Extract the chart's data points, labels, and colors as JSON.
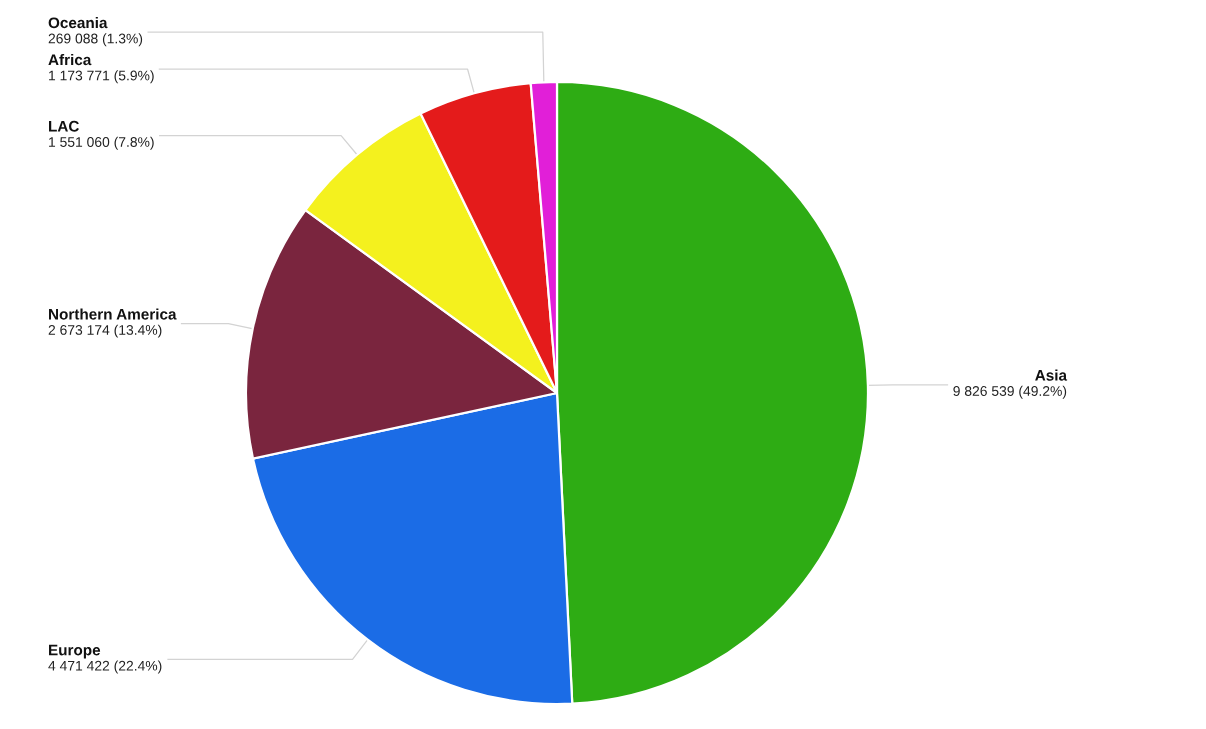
{
  "chart_data": {
    "type": "pie",
    "categories": [
      "Asia",
      "Europe",
      "Northern America",
      "LAC",
      "Africa",
      "Oceania"
    ],
    "values": [
      9826539,
      4471422,
      2673174,
      1551060,
      1173771,
      269088
    ],
    "colors": [
      "#2eac14",
      "#1b6ce6",
      "#7a253e",
      "#f4f11e",
      "#e41b1b",
      "#e11fd8"
    ],
    "value_labels": [
      "9 826 539 (49.2%)",
      "4 471 422 (22.4%)",
      "2 673 174 (13.4%)",
      "1 551 060 (7.8%)",
      "1 173 771 (5.9%)",
      "269 088 (1.3%)"
    ]
  }
}
